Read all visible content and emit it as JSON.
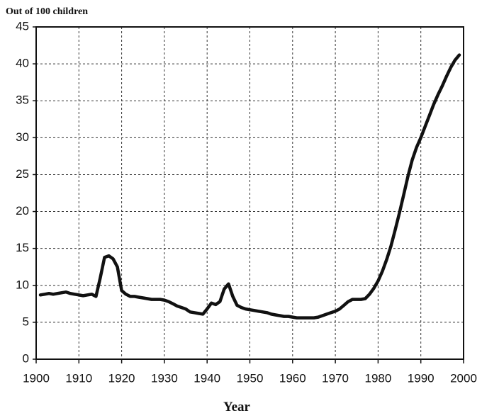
{
  "chart_data": {
    "type": "line",
    "title": "Out of 100 children",
    "xlabel": "Year",
    "x": [
      1901,
      1902,
      1903,
      1904,
      1905,
      1906,
      1907,
      1908,
      1909,
      1910,
      1911,
      1912,
      1913,
      1914,
      1915,
      1916,
      1917,
      1918,
      1919,
      1920,
      1921,
      1922,
      1923,
      1924,
      1925,
      1926,
      1927,
      1928,
      1929,
      1930,
      1931,
      1932,
      1933,
      1934,
      1935,
      1936,
      1937,
      1938,
      1939,
      1940,
      1941,
      1942,
      1943,
      1944,
      1945,
      1946,
      1947,
      1948,
      1949,
      1950,
      1951,
      1952,
      1953,
      1954,
      1955,
      1956,
      1957,
      1958,
      1959,
      1960,
      1961,
      1962,
      1963,
      1964,
      1965,
      1966,
      1967,
      1968,
      1969,
      1970,
      1971,
      1972,
      1973,
      1974,
      1975,
      1976,
      1977,
      1978,
      1979,
      1980,
      1981,
      1982,
      1983,
      1984,
      1985,
      1986,
      1987,
      1988,
      1989,
      1990,
      1991,
      1992,
      1993,
      1994,
      1995,
      1996,
      1997,
      1998,
      1999
    ],
    "values": [
      8.7,
      8.8,
      8.9,
      8.8,
      8.9,
      9.0,
      9.1,
      8.9,
      8.8,
      8.7,
      8.6,
      8.7,
      8.8,
      8.5,
      11.0,
      13.8,
      14.0,
      13.6,
      12.5,
      9.3,
      8.8,
      8.5,
      8.5,
      8.4,
      8.3,
      8.2,
      8.1,
      8.1,
      8.1,
      8.0,
      7.8,
      7.5,
      7.2,
      7.0,
      6.8,
      6.4,
      6.3,
      6.2,
      6.1,
      6.8,
      7.6,
      7.4,
      7.8,
      9.5,
      10.2,
      8.5,
      7.3,
      7.0,
      6.8,
      6.7,
      6.6,
      6.5,
      6.4,
      6.3,
      6.1,
      6.0,
      5.9,
      5.8,
      5.8,
      5.7,
      5.6,
      5.6,
      5.6,
      5.6,
      5.6,
      5.7,
      5.9,
      6.1,
      6.3,
      6.5,
      6.8,
      7.3,
      7.8,
      8.1,
      8.1,
      8.1,
      8.2,
      8.8,
      9.6,
      10.6,
      11.9,
      13.5,
      15.3,
      17.5,
      19.8,
      22.3,
      24.8,
      27.0,
      28.7,
      30.0,
      31.5,
      33.0,
      34.5,
      35.8,
      37.0,
      38.3,
      39.5,
      40.5,
      41.2
    ],
    "color": "#111111",
    "xlim": [
      1900,
      2000
    ],
    "xticks": [
      1900,
      1910,
      1920,
      1930,
      1940,
      1950,
      1960,
      1970,
      1980,
      1990,
      2000
    ],
    "ylim": [
      0,
      45
    ],
    "yticks": [
      0,
      5,
      10,
      15,
      20,
      25,
      30,
      35,
      40,
      45
    ],
    "grid": true
  }
}
